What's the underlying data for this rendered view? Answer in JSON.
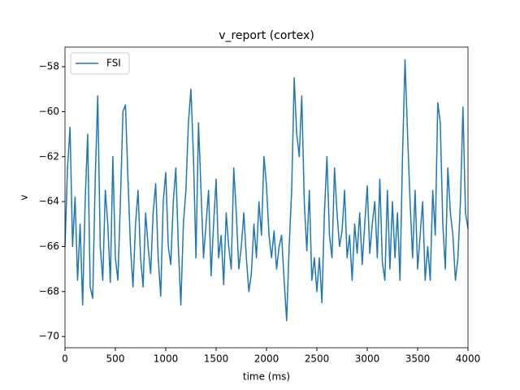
{
  "chart_data": {
    "type": "line",
    "title": "v_report (cortex)",
    "xlabel": "time (ms)",
    "ylabel": "v",
    "x": [
      0,
      25,
      50,
      75,
      100,
      125,
      150,
      175,
      200,
      225,
      250,
      275,
      300,
      325,
      350,
      375,
      400,
      425,
      450,
      475,
      500,
      525,
      550,
      575,
      600,
      625,
      650,
      675,
      700,
      725,
      750,
      775,
      800,
      825,
      850,
      875,
      900,
      925,
      950,
      975,
      1000,
      1025,
      1050,
      1075,
      1100,
      1125,
      1150,
      1175,
      1200,
      1225,
      1250,
      1275,
      1300,
      1325,
      1350,
      1375,
      1400,
      1425,
      1450,
      1475,
      1500,
      1525,
      1550,
      1575,
      1600,
      1625,
      1650,
      1675,
      1700,
      1725,
      1750,
      1775,
      1800,
      1825,
      1850,
      1875,
      1900,
      1925,
      1950,
      1975,
      2000,
      2025,
      2050,
      2075,
      2100,
      2125,
      2150,
      2175,
      2200,
      2225,
      2250,
      2275,
      2300,
      2325,
      2350,
      2375,
      2400,
      2425,
      2450,
      2475,
      2500,
      2525,
      2550,
      2575,
      2600,
      2625,
      2650,
      2675,
      2700,
      2725,
      2750,
      2775,
      2800,
      2825,
      2850,
      2875,
      2900,
      2925,
      2950,
      2975,
      3000,
      3025,
      3050,
      3075,
      3100,
      3125,
      3150,
      3175,
      3200,
      3225,
      3250,
      3275,
      3300,
      3325,
      3350,
      3375,
      3400,
      3425,
      3450,
      3475,
      3500,
      3525,
      3550,
      3575,
      3600,
      3625,
      3650,
      3675,
      3700,
      3725,
      3750,
      3775,
      3800,
      3825,
      3850,
      3875,
      3900,
      3925,
      3950,
      3975,
      4000
    ],
    "series": [
      {
        "name": "FSI",
        "color": "#1f77b4",
        "values": [
          -66,
          -62.5,
          -60.7,
          -66,
          -63.8,
          -67.5,
          -65,
          -68.6,
          -64,
          -61,
          -67.8,
          -68.3,
          -63,
          -59.3,
          -66,
          -67.5,
          -63.5,
          -65,
          -67.6,
          -62,
          -66.5,
          -67.5,
          -64,
          -60,
          -59.7,
          -63,
          -66,
          -67.8,
          -65,
          -63.5,
          -66.5,
          -67.8,
          -64.5,
          -66,
          -67.2,
          -64.5,
          -63.2,
          -66.5,
          -68.2,
          -64,
          -62.7,
          -66,
          -66.8,
          -64,
          -62.5,
          -66,
          -68.6,
          -65,
          -63.5,
          -60.5,
          -59,
          -62,
          -66.5,
          -60.5,
          -63.5,
          -66.5,
          -65,
          -63.5,
          -67.3,
          -65,
          -63,
          -66.5,
          -65.5,
          -67.7,
          -64.5,
          -66,
          -67,
          -62.5,
          -64.5,
          -67,
          -66,
          -64.5,
          -66.5,
          -68,
          -67.2,
          -65,
          -66.5,
          -64,
          -65.5,
          -62,
          -63.3,
          -65.5,
          -66.5,
          -65.3,
          -67,
          -66,
          -65.5,
          -67.5,
          -69.3,
          -66,
          -63.5,
          -58.5,
          -61,
          -62,
          -59.3,
          -64,
          -66.2,
          -63.5,
          -67.5,
          -66.5,
          -68,
          -66.5,
          -68.5,
          -64.5,
          -62,
          -65.5,
          -66.5,
          -62.5,
          -64.5,
          -66,
          -65.3,
          -63.5,
          -66.5,
          -65.5,
          -67.5,
          -65,
          -66.3,
          -64.5,
          -66.8,
          -65,
          -63.3,
          -66.3,
          -65,
          -64,
          -66.5,
          -63,
          -66.7,
          -67.5,
          -63.5,
          -67,
          -64,
          -66.5,
          -64.5,
          -67.5,
          -62,
          -57.7,
          -61,
          -64,
          -66.5,
          -63.5,
          -67,
          -65.5,
          -64,
          -67.5,
          -66,
          -67.5,
          -63.5,
          -65.5,
          -59.6,
          -60.5,
          -65,
          -67,
          -62.5,
          -64.5,
          -65.5,
          -67.5,
          -66.5,
          -64,
          -59.8,
          -64.5,
          -65.2
        ]
      }
    ],
    "xlim": [
      0,
      4000
    ],
    "xticks": [
      0,
      500,
      1000,
      1500,
      2000,
      2500,
      3000,
      3500,
      4000
    ],
    "ylim": [
      -70.5,
      -57.13
    ],
    "yticks": [
      {
        "value": -70,
        "label": "−70"
      },
      {
        "value": -68,
        "label": "−68"
      },
      {
        "value": -66,
        "label": "−66"
      },
      {
        "value": -64,
        "label": "−64"
      },
      {
        "value": -62,
        "label": "−62"
      },
      {
        "value": -60,
        "label": "−60"
      },
      {
        "value": -58,
        "label": "−58"
      }
    ],
    "grid": false,
    "legend": "upper left"
  }
}
